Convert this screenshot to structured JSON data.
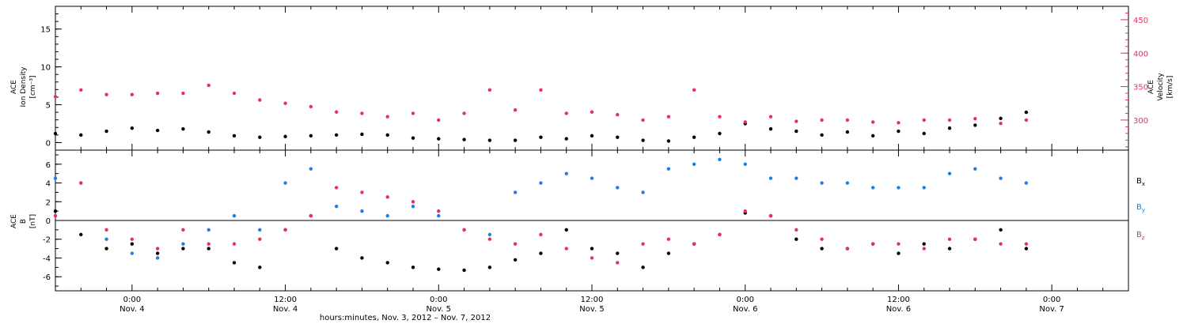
{
  "colors": {
    "black": "#000000",
    "pink": "#e8305e",
    "blue": "#1e7fe0"
  },
  "chart_data": [
    {
      "type": "scatter",
      "panel": "top",
      "title": "",
      "x_unit": "hours",
      "x_range": [
        -6,
        78
      ],
      "left_axis": {
        "label_lines": [
          "ACE",
          "Ion Density",
          "[cm⁻³]"
        ],
        "ylim": [
          -1,
          18
        ],
        "ticks": [
          0,
          5,
          10,
          15
        ]
      },
      "right_axis": {
        "label_lines": [
          "ACE",
          "Velocity",
          "[km/s]"
        ],
        "ylim": [
          255,
          470
        ],
        "ticks": [
          300,
          350,
          400,
          450
        ]
      },
      "series": [
        {
          "axis": "left",
          "color": "#000000",
          "x": [
            -6,
            -4,
            -2,
            0,
            2,
            4,
            6,
            8,
            10,
            12,
            14,
            16,
            18,
            20,
            22,
            24,
            26,
            28,
            30,
            32,
            34,
            36,
            38,
            40,
            42,
            44,
            46,
            48,
            50,
            52,
            54,
            56,
            58,
            60,
            62,
            64,
            66,
            68,
            70
          ],
          "y": [
            1.2,
            1.0,
            1.5,
            1.9,
            1.6,
            1.8,
            1.4,
            0.9,
            0.7,
            0.8,
            0.9,
            1.0,
            1.1,
            1.0,
            0.6,
            0.5,
            0.4,
            0.3,
            0.3,
            0.7,
            0.5,
            0.9,
            0.7,
            0.3,
            0.2,
            0.7,
            1.2,
            2.5,
            1.8,
            1.5,
            1.0,
            1.4,
            0.9,
            1.5,
            1.2,
            1.9,
            2.3,
            3.2,
            4.0
          ]
        },
        {
          "axis": "right",
          "color": "#e8305e",
          "x": [
            -6,
            -4,
            -2,
            0,
            2,
            4,
            6,
            8,
            10,
            12,
            14,
            16,
            18,
            20,
            22,
            24,
            26,
            28,
            30,
            32,
            34,
            36,
            38,
            40,
            42,
            44,
            46,
            48,
            50,
            52,
            54,
            56,
            58,
            60,
            62,
            64,
            66,
            68,
            70
          ],
          "y": [
            335,
            345,
            338,
            338,
            340,
            340,
            352,
            340,
            330,
            325,
            320,
            312,
            310,
            305,
            310,
            300,
            310,
            345,
            315,
            345,
            310,
            312,
            308,
            300,
            305,
            345,
            305,
            297,
            305,
            298,
            300,
            300,
            297,
            296,
            300,
            300,
            302,
            295,
            300
          ]
        }
      ]
    },
    {
      "type": "scatter",
      "panel": "bottom",
      "title": "",
      "x_unit": "hours",
      "x_range": [
        -6,
        78
      ],
      "y_axis": {
        "label_lines": [
          "ACE",
          "B",
          "[nT]"
        ],
        "ylim": [
          -7.5,
          7.5
        ],
        "ticks": [
          -6,
          -4,
          -2,
          0,
          2,
          4,
          6
        ]
      },
      "series": [
        {
          "name": "Bx",
          "label_main": "B",
          "label_sub": "x",
          "color": "#000000",
          "x": [
            -6,
            -4,
            -2,
            0,
            2,
            4,
            6,
            8,
            10,
            12,
            14,
            16,
            18,
            20,
            22,
            24,
            26,
            28,
            30,
            32,
            34,
            36,
            38,
            40,
            42,
            44,
            46,
            48,
            50,
            52,
            54,
            56,
            58,
            60,
            62,
            64,
            66,
            68,
            70
          ],
          "y": [
            1.0,
            -1.5,
            -3.0,
            -2.5,
            -3.5,
            -3.0,
            -3.0,
            -4.5,
            -5.0,
            -1.0,
            0.5,
            -3.0,
            -4.0,
            -4.5,
            -5.0,
            -5.2,
            -5.3,
            -5.0,
            -4.2,
            -3.5,
            -1.0,
            -3.0,
            -3.5,
            -5.0,
            -3.5,
            -2.5,
            -1.5,
            0.8,
            0.5,
            -2.0,
            -3.0,
            -3.0,
            -2.5,
            -3.5,
            -2.5,
            -3.0,
            -2.0,
            -1.0,
            -3.0
          ]
        },
        {
          "name": "By",
          "label_main": "B",
          "label_sub": "y",
          "color": "#1e7fe0",
          "x": [
            -6,
            -4,
            -2,
            0,
            2,
            4,
            6,
            8,
            10,
            12,
            14,
            16,
            18,
            20,
            22,
            24,
            26,
            28,
            30,
            32,
            34,
            36,
            38,
            40,
            42,
            44,
            46,
            48,
            50,
            52,
            54,
            56,
            58,
            60,
            62,
            64,
            66,
            68,
            70
          ],
          "y": [
            4.5,
            4.0,
            -2.0,
            -3.5,
            -4.0,
            -2.5,
            -1.0,
            0.5,
            -1.0,
            4.0,
            5.5,
            1.5,
            1.0,
            0.5,
            1.5,
            0.5,
            -1.0,
            -1.5,
            3.0,
            4.0,
            5.0,
            4.5,
            3.5,
            3.0,
            5.5,
            6.0,
            6.5,
            6.0,
            4.5,
            4.5,
            4.0,
            4.0,
            3.5,
            3.5,
            3.5,
            5.0,
            5.5,
            4.5,
            4.0
          ]
        },
        {
          "name": "Bz",
          "label_main": "B",
          "label_sub": "z",
          "color": "#e8305e",
          "x": [
            -6,
            -4,
            -2,
            0,
            2,
            4,
            6,
            8,
            10,
            12,
            14,
            16,
            18,
            20,
            22,
            24,
            26,
            28,
            30,
            32,
            34,
            36,
            38,
            40,
            42,
            44,
            46,
            48,
            50,
            52,
            54,
            56,
            58,
            60,
            62,
            64,
            66,
            68,
            70
          ],
          "y": [
            0.5,
            4.0,
            -1.0,
            -2.0,
            -3.0,
            -1.0,
            -2.5,
            -2.5,
            -2.0,
            -1.0,
            0.5,
            3.5,
            3.0,
            2.5,
            2.0,
            1.0,
            -1.0,
            -2.0,
            -2.5,
            -1.5,
            -3.0,
            -4.0,
            -4.5,
            -2.5,
            -2.0,
            -2.5,
            -1.5,
            1.0,
            0.5,
            -1.0,
            -2.0,
            -3.0,
            -2.5,
            -2.5,
            -3.0,
            -2.0,
            -2.0,
            -2.5,
            -2.5
          ]
        }
      ]
    }
  ],
  "x_axis": {
    "ticks": [
      {
        "h": 0,
        "time": "0:00",
        "date": "Nov. 4"
      },
      {
        "h": 12,
        "time": "12:00",
        "date": "Nov. 4"
      },
      {
        "h": 24,
        "time": "0:00",
        "date": "Nov. 5"
      },
      {
        "h": 36,
        "time": "12:00",
        "date": "Nov. 5"
      },
      {
        "h": 48,
        "time": "0:00",
        "date": "Nov. 6"
      },
      {
        "h": 60,
        "time": "12:00",
        "date": "Nov. 6"
      },
      {
        "h": 72,
        "time": "0:00",
        "date": "Nov. 7"
      }
    ],
    "xlabel": "hours:minutes, Nov.  3, 2012 – Nov.  7, 2012"
  }
}
